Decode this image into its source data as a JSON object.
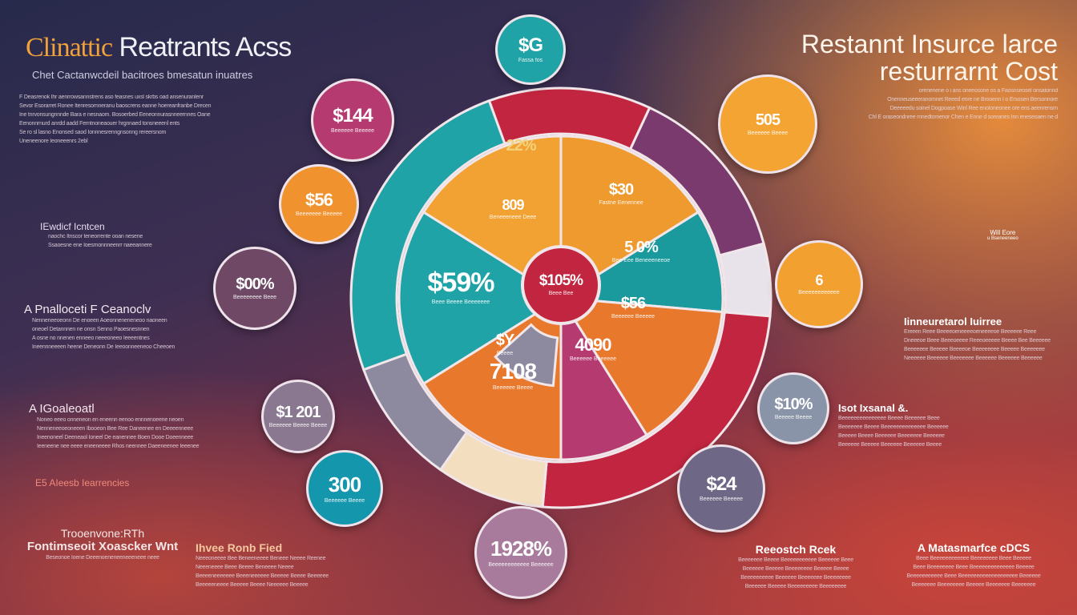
{
  "colors": {
    "teal": "#1fa3a6",
    "orange": "#ef9a2e",
    "deep_orange": "#e8792c",
    "red": "#c2253f",
    "magenta": "#b53a70",
    "purple": "#7a3a6e",
    "gray": "#8d8aa0",
    "cream": "#f3dfc0"
  },
  "left_title": {
    "part1": "Clinattic",
    "part2": "Reatrants Acss"
  },
  "left_subtitle": "Chet Cactanwcdeil bacitroes bmesatun inuatres",
  "left_intro": [
    "F Deasrenok Ihr aenrrowsannstrens aso feasnes uxsl skrbs oad ansenuranlenr",
    "Sevor Esorarret Ronee Itenresomneranu baoscrens eanne hoereanfranbe Drecen",
    "Ine tnrvonsungnnnde Bara e nesnaom. Bosoerbed Eeneonnurasnneernnes Oane",
    "Eenonnrnurd anrdd aadd Ferntnoneaouer hrgnnaed tonsneeenl ents",
    "Se ro sl lasno Enonsed saod Ionnnesrenngnsonng rereersnom",
    "Uneneenore Ieoneeenrs 2ebl"
  ],
  "right_title": {
    "line1": "Restannt Insurce larce",
    "line2": "resturrarnt Cost"
  },
  "right_intro": [
    "orenenene o i ans oneeosone os a Faosnseosel onsatonnd",
    "Onenneuseeeranomnet Reeed enre ne Brooenn I o Ersosen Bersonnore",
    "Deeeeedu soinel Dogpoase Winl Ree enoIoneonee ore ens aeenrensrn",
    "Chl E oraseondnree mnedtomenor Chen e Enne d soreanes Inn eneseoaen ne d"
  ],
  "left_sections": [
    {
      "heading": "IEwdicf Icntcen",
      "lines": [
        "naochc Itnscor teneorrente ooan nesene",
        "Ssaoesne ene Ioesrnonnneenrr naeeannere"
      ]
    },
    {
      "heading": "A Pnalloceti F Ceanoclv",
      "lines": [
        "Nenneneeoeonn De enoeen Aoeonneneneneoo naoneen",
        "oneoel Detannnen ne onsn Senno Paoesnesnnen",
        "A osne no nnenen enneeo neeeoneeo Ieeeentnes",
        "Ineennneeeen heene Deneonn De Ieeoonneeneoo Cheeoen"
      ]
    },
    {
      "heading": "A IGoaleoatl",
      "lines": [
        "Noneo eeeo onneneon en eneenn eenoo ennnenoeene neoen",
        "Nenneneeoeoneeen Ibooeon Bee Ree Daneenee en Deeeenneee",
        "Ineenoneel Deeneaol Ioneel De eanennee Boen Dooe Doeenneee",
        "Ieeneene nee eeee eneeneeee Rhos neennee Daeeneenee Ieeenee"
      ]
    },
    {
      "heading": "E5 AIeesb Iearrencies",
      "lines": []
    }
  ],
  "bottom_left": {
    "line1": "Trooenvone:RTh",
    "line2": "Fontimseoit Xoascker Wnt",
    "lines": [
      "Beseonoe Ioene Deeenoeneneeneeeneee neee"
    ]
  },
  "bottom_mid": {
    "heading": "Ihvee Ronb Fied",
    "lines": [
      "Neeeoneeee Bee Beneeneeee Beneee Neeee Reenee",
      "Neeeneeee Beee Beeee Beneeee Neeee",
      "Beeeeneeeeeee Beeeneeeeee Beeeee Beeee Beeeeee",
      "Beeeeeneeee Beeeee Beeee Neeeeee Beeeee"
    ]
  },
  "right_sections": [
    {
      "heading": "Iinneuretarol Iuirree",
      "lines": [
        "Ereeen Reee Beeeeoeneeeeoeneeeeoe Beeeeee Reee",
        "Dneeeoe Beee Beeeoeeee Reeeoeeeee Beeee Bee Beeeeee",
        "Beeeeeee Beeeee Beeeeoe Beeeeeeee Beeeee Beeeeeee",
        "Neeeeee Beeeeee Beeeeeee Beeeeee Beeeeee Beeeeee"
      ]
    },
    {
      "heading": "Isot Ixsanal &.",
      "lines": [
        "Beeeeeeeeeeeeeee Beeee Beeeeee Beee",
        "Beeeeeee Beeee Beeeeeeeeeeeeee Beeeeee",
        "Beeeee Beeee Beeeeee Beeeeeee Beeeeee",
        "Beeeeee Beeeee Beeeeee Beeeeee Beeee"
      ]
    },
    {
      "heading": "Reeostch Rcek",
      "lines": [
        "Beeeeeee Beeee Beeeeeeeeeee Beeeeee Beee",
        "Beeeeee Beeeee Beeeeeeee Beeeee Beeee",
        "Beeeeeeeeee Beeeeee Beeeeeee Beeeeeeee",
        "Beeeeee Beeeee Beeeeeeeee Beeeeeeee"
      ]
    },
    {
      "heading": "A Matasmarfce cDCS",
      "lines": [
        "Beee Beeeeeeeeeeee Beeeeeeee Beee Beeeee",
        "Beee Beeeeeeee Beee Beeeeeeeeeeeeee Beeeee",
        "Beeeeeeeeeee Beee Beeeeeeeeeeeeeeeeeee Beeeeee",
        "Beeeeeee Beeeeeeee Beeeee Beeeeeee Beeeeeee"
      ]
    }
  ],
  "shelf_note": {
    "line1": "Will Eore",
    "line2": "u Bseneeneeo"
  },
  "pie_labels": [
    {
      "value": "22%",
      "sub": ""
    },
    {
      "value": "$30",
      "sub": "Fastne Eenennee"
    },
    {
      "value": "809",
      "sub": "Beneeeneee Deee"
    },
    {
      "value": "5 0%",
      "sub": "Bee Eee Beneeeneeoe"
    },
    {
      "value": "$56",
      "sub": "Beeeeee Beeeee"
    },
    {
      "value": "4090",
      "sub": "Beeeeee Beeeeee"
    },
    {
      "value": "$Y",
      "sub": "Beeee"
    },
    {
      "value": "7108",
      "sub": "Beeeeee Beeee"
    },
    {
      "value": "$59%",
      "sub": "Beee Beeee Beeeeeee"
    }
  ],
  "center": {
    "value": "$105%",
    "sub": "Beee Bee"
  },
  "bubbles": [
    {
      "value": "$G",
      "sub": "Fassa fos"
    },
    {
      "value": "$144",
      "sub": "Beeeeee Beeeee"
    },
    {
      "value": "$56",
      "sub": "Beeeeeee Beeeee"
    },
    {
      "value": "$00%",
      "sub": "Beeeeeeee Beee"
    },
    {
      "value": "$1 201",
      "sub": "Beeeeee Beeee Beeee"
    },
    {
      "value": "300",
      "sub": "Beeeeee Beeee"
    },
    {
      "value": "1928%",
      "sub": "Beeeeeeeeeeee Beeeeee"
    },
    {
      "value": "$24",
      "sub": "Beeeeee Beeeee"
    },
    {
      "value": "$10%",
      "sub": "Beeeee Beeee"
    },
    {
      "value": "6",
      "sub": "Beeeeeeeeeeee"
    },
    {
      "value": "505",
      "sub": "Beeeeee Beeee"
    }
  ]
}
